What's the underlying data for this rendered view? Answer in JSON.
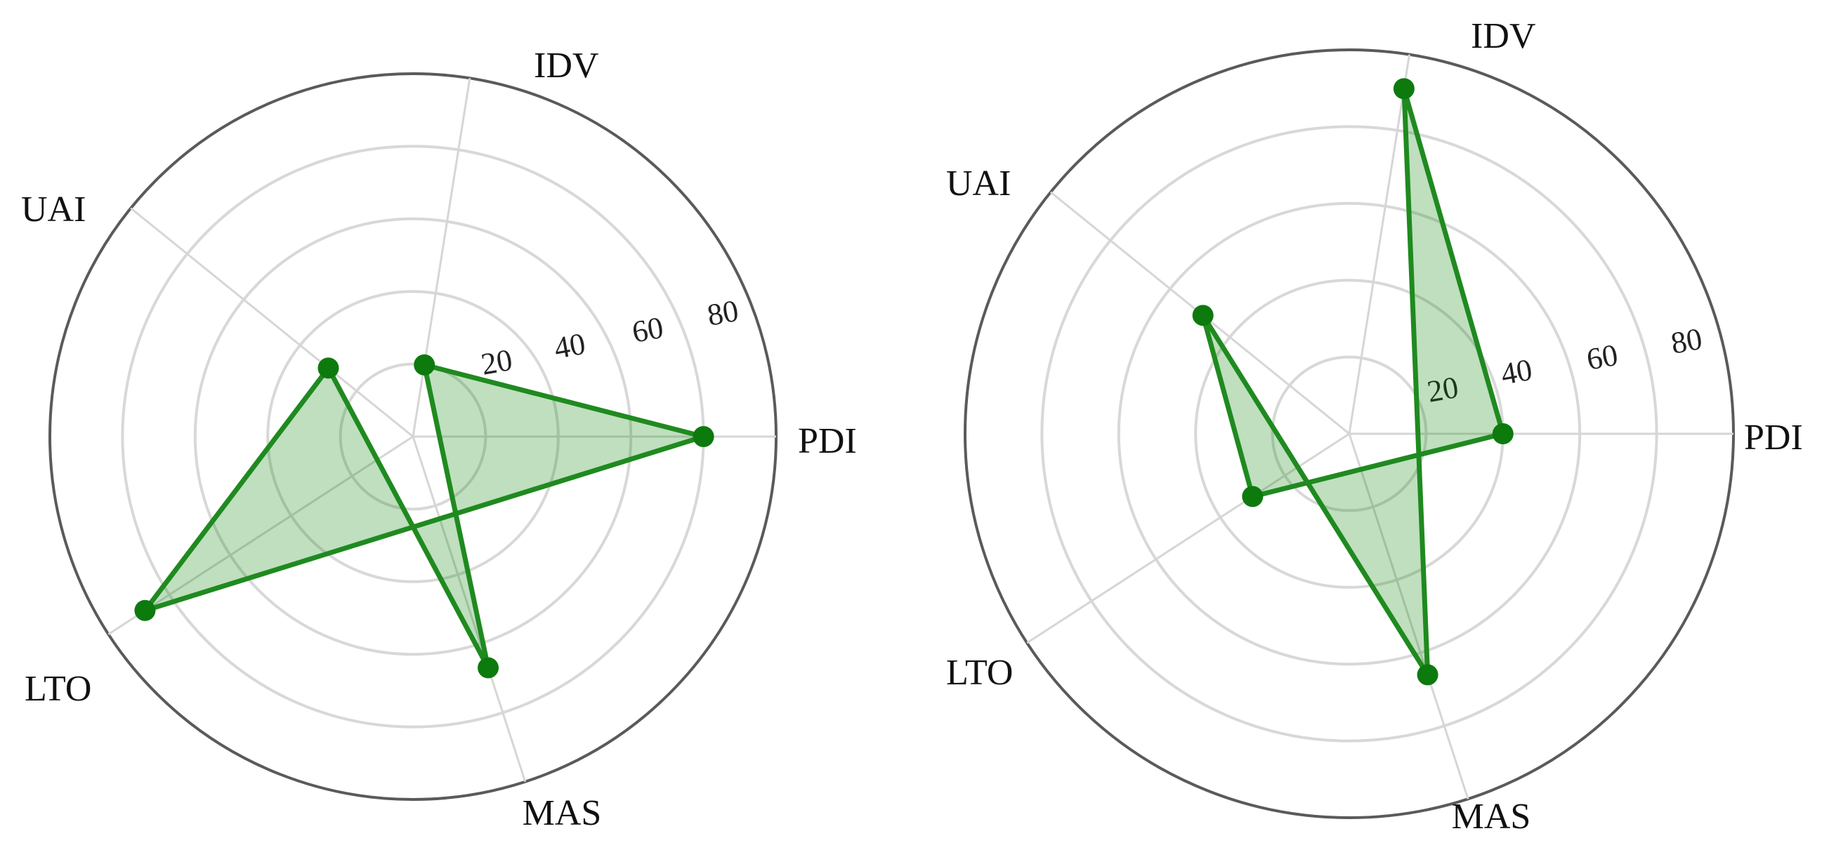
{
  "chart_data": [
    {
      "type": "radar",
      "categories": [
        "PDI",
        "IDV",
        "MAS",
        "UAI",
        "LTO"
      ],
      "ticks": [
        "20",
        "40",
        "60",
        "80"
      ],
      "rmax": 100,
      "series": [
        {
          "values": [
            80,
            20,
            67,
            30,
            88
          ]
        }
      ],
      "colors": {
        "line": "#1f8a1f",
        "fill": "rgba(0,128,0,0.25)",
        "point": "#0d7a0d"
      },
      "grid": true,
      "legend": "none"
    },
    {
      "type": "radar",
      "categories": [
        "PDI",
        "IDV",
        "MAS",
        "UAI",
        "LTO"
      ],
      "ticks": [
        "20",
        "40",
        "60",
        "80"
      ],
      "rmax": 100,
      "series": [
        {
          "values": [
            40,
            91,
            66,
            49,
            30
          ]
        }
      ],
      "colors": {
        "line": "#1f8a1f",
        "fill": "rgba(0,128,0,0.25)",
        "point": "#0d7a0d"
      },
      "grid": true,
      "legend": "none"
    }
  ]
}
